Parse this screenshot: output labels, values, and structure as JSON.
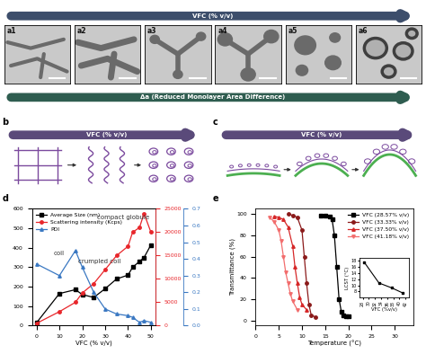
{
  "figure": {
    "top_arrow": "VFC (% v/v)",
    "bottom_arrow": "Δa (Reduced Monolayer Area Difference)",
    "image_panels": [
      "a1",
      "a2",
      "a3",
      "a4",
      "a5",
      "a6"
    ],
    "panel_b": {
      "label": "b",
      "arrow": "VFC (% v/v)"
    },
    "panel_c": {
      "label": "c",
      "arrow": "VFC (% v/v)"
    },
    "panel_d": {
      "label": "d"
    },
    "panel_e": {
      "label": "e"
    }
  },
  "chart_data": [
    {
      "type": "line",
      "xlabel": "VFC (% v/v)",
      "x": [
        0,
        10,
        17,
        20,
        25,
        30,
        35,
        40,
        42,
        45,
        47,
        50
      ],
      "xlim": [
        -2,
        52
      ],
      "xticks": [
        0,
        10,
        20,
        30,
        40,
        50
      ],
      "ylim": [
        0,
        600
      ],
      "yticks": [
        0,
        100,
        200,
        300,
        400,
        500,
        600
      ],
      "y2lim": [
        0,
        25000
      ],
      "y2ticks": [
        0,
        5000,
        10000,
        15000,
        20000,
        25000
      ],
      "y3lim": [
        0.0,
        0.7
      ],
      "y3ticks": [
        0.0,
        0.1,
        0.2,
        0.3,
        0.4,
        0.5,
        0.6,
        0.7
      ],
      "legend": "upper left",
      "annotations": [
        "coil",
        "crumpled coil",
        "compact globule"
      ],
      "series": [
        {
          "name": "Average Size (nm)",
          "color": "#000000",
          "marker": "square",
          "line_style": "solid",
          "axis": "y",
          "values": [
            15,
            165,
            185,
            160,
            145,
            190,
            240,
            260,
            300,
            330,
            350,
            415
          ]
        },
        {
          "name": "Scattering intensity (Kcps)",
          "color": "#e8262b",
          "marker": "circle",
          "line_style": "solid",
          "axis": "y2",
          "values": [
            500,
            3000,
            5000,
            7000,
            9000,
            12000,
            15000,
            17000,
            20000,
            21000,
            24000,
            20000
          ]
        },
        {
          "name": "PDI",
          "color": "#3a78c2",
          "marker": "triangle",
          "line_style": "solid",
          "axis": "y3",
          "values": [
            0.37,
            0.3,
            0.45,
            0.35,
            0.2,
            0.1,
            0.07,
            0.06,
            0.05,
            0.02,
            0.03,
            0.02
          ]
        }
      ]
    },
    {
      "type": "line",
      "xlabel": "Temperature (°C)",
      "ylabel": "Transmittance (%)",
      "xlim": [
        0,
        34
      ],
      "xticks": [
        0,
        5,
        10,
        15,
        20,
        25,
        30
      ],
      "ylim": [
        -5,
        105
      ],
      "yticks": [
        0,
        20,
        40,
        60,
        80,
        100
      ],
      "legend": "upper right",
      "series": [
        {
          "name": "VFC (28.57% v/v)",
          "color": "#000000",
          "marker": "square",
          "line_style": "solid",
          "x": [
            14,
            15,
            16,
            16.5,
            17,
            17.5,
            18,
            18.5,
            19,
            19.5,
            20
          ],
          "values": [
            99,
            99,
            98,
            95,
            80,
            50,
            20,
            8,
            5,
            4,
            4
          ]
        },
        {
          "name": "VFC (33.33% v/v)",
          "color": "#8b1a1a",
          "marker": "circle",
          "line_style": "solid",
          "x": [
            7,
            8,
            9,
            10,
            10.5,
            11,
            11.5,
            12,
            13
          ],
          "values": [
            100,
            99,
            97,
            85,
            60,
            35,
            15,
            5,
            3
          ]
        },
        {
          "name": "VFC (37.50% v/v)",
          "color": "#d62728",
          "marker": "triangle",
          "line_style": "solid",
          "x": [
            4,
            5,
            6,
            7,
            8,
            8.5,
            9,
            9.5,
            10,
            11
          ],
          "values": [
            98,
            97,
            95,
            88,
            70,
            50,
            35,
            22,
            15,
            10
          ]
        },
        {
          "name": "VFC (41.18% v/v)",
          "color": "#f26d6d",
          "marker": "triangle_down",
          "line_style": "solid",
          "x": [
            3,
            4,
            5,
            5.5,
            6,
            6.5,
            7,
            7.5,
            8,
            9
          ],
          "values": [
            97,
            93,
            85,
            75,
            60,
            45,
            35,
            25,
            18,
            10
          ]
        }
      ],
      "inset": {
        "type": "line",
        "xlabel": "VFC (%v/v)",
        "ylabel": "LCST (°C)",
        "x": [
          28.57,
          33.33,
          37.5,
          41.18
        ],
        "values": [
          17.5,
          10.8,
          9.2,
          7.5
        ],
        "xlim": [
          27,
          43
        ],
        "xticks": [
          28,
          30,
          32,
          34,
          36,
          38,
          40,
          42
        ],
        "ylim": [
          6,
          19
        ],
        "yticks": [
          8,
          10,
          12,
          14,
          16,
          18
        ],
        "color": "#000000",
        "marker": "square",
        "line_style": "solid"
      }
    }
  ]
}
